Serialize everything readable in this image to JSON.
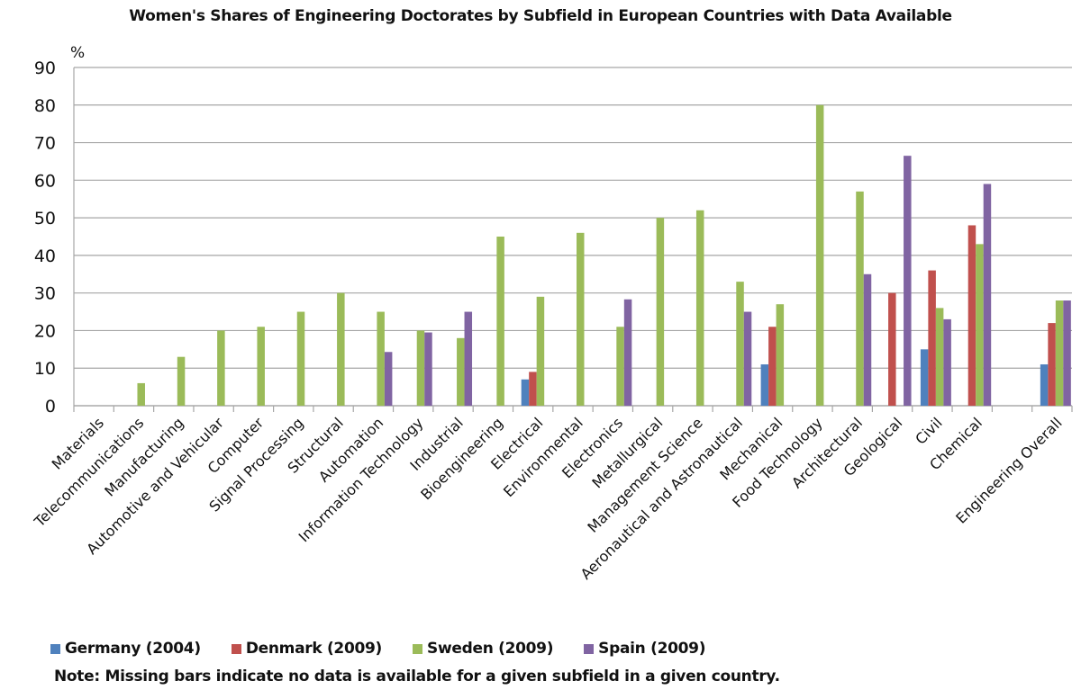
{
  "chart_data": {
    "type": "bar",
    "title": "Women's Shares of Engineering Doctorates by Subfield  in European Countries with Data Available",
    "xlabel": "",
    "ylabel": "%",
    "ylim": [
      0,
      90
    ],
    "yticks": [
      0,
      10,
      20,
      30,
      40,
      50,
      60,
      70,
      80,
      90
    ],
    "grid": true,
    "legend_position": "bottom-left",
    "categories": [
      "Materials",
      "Telecommunications",
      "Manufacturing",
      "Automotive and Vehicular",
      "Computer",
      "Signal Processing",
      "Structural",
      "Automation",
      "Information Technology",
      "Industrial",
      "Bioengineering",
      "Electrical",
      "Environmental",
      "Electronics",
      "Metallurgical",
      "Management Science",
      "Aeronautical and Astronautical",
      "Mechanical",
      "Food Technology",
      "Architectural",
      "Geological",
      "Civil",
      "Chemical",
      "",
      "Engineering Overall"
    ],
    "series": [
      {
        "name": "Germany (2004)",
        "color": "#4f81bd",
        "values": [
          null,
          null,
          null,
          null,
          null,
          null,
          null,
          null,
          null,
          null,
          null,
          7,
          null,
          null,
          null,
          null,
          null,
          11,
          null,
          null,
          null,
          15,
          null,
          null,
          11
        ]
      },
      {
        "name": "Denmark (2009)",
        "color": "#c0504d",
        "values": [
          null,
          null,
          null,
          null,
          null,
          null,
          null,
          null,
          null,
          null,
          null,
          9,
          null,
          null,
          null,
          null,
          null,
          21,
          null,
          null,
          30,
          36,
          48,
          null,
          22
        ]
      },
      {
        "name": "Sweden (2009)",
        "color": "#9bbb59",
        "values": [
          null,
          6,
          13,
          20,
          21,
          25,
          30,
          25,
          20,
          18,
          45,
          29,
          46,
          21,
          50,
          52,
          33,
          27,
          80,
          57,
          null,
          26,
          43,
          null,
          28
        ]
      },
      {
        "name": "Spain (2009)",
        "color": "#8064a2",
        "values": [
          null,
          null,
          null,
          null,
          null,
          null,
          null,
          14.3,
          19.5,
          25,
          null,
          null,
          null,
          28.3,
          null,
          null,
          25,
          null,
          null,
          35,
          66.5,
          23,
          59,
          null,
          28
        ]
      }
    ],
    "note": "Note: Missing bars indicate no data is available for a given subfield in a given country."
  }
}
